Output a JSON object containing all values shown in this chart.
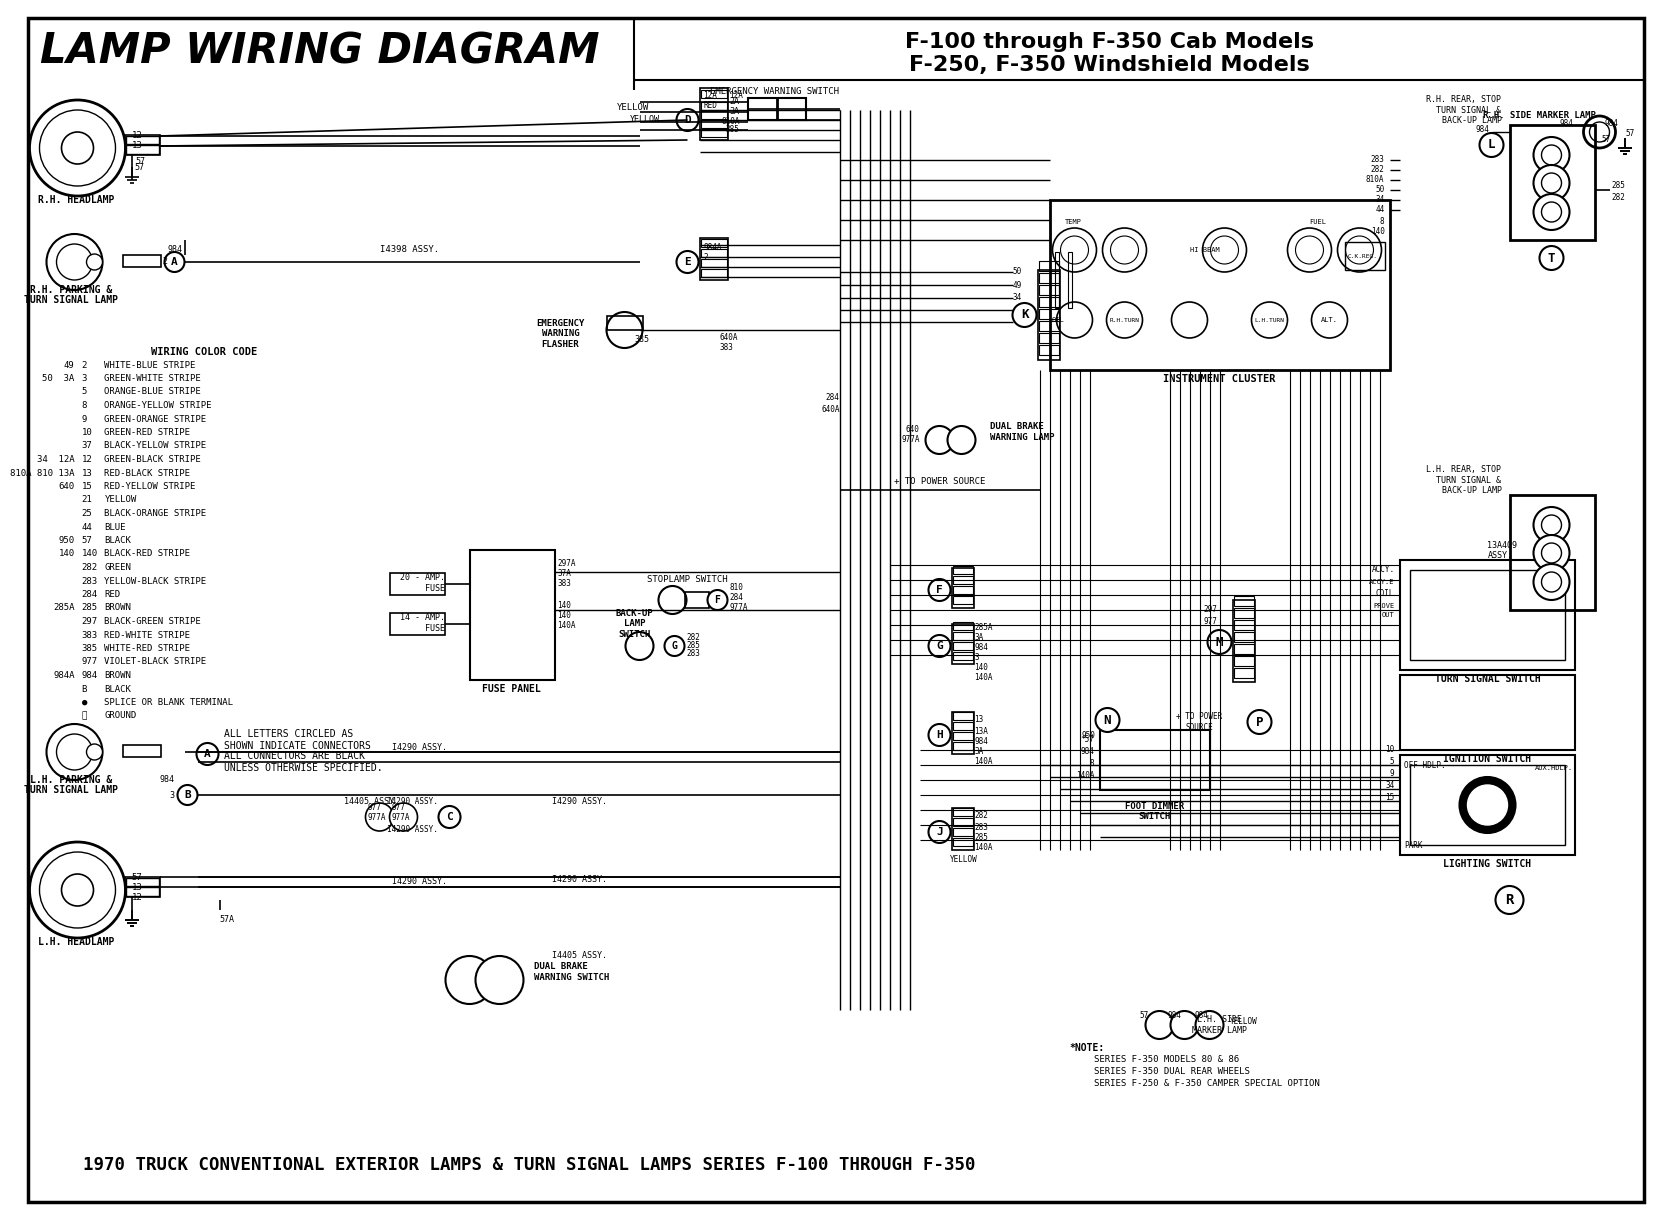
{
  "figsize": [
    16.32,
    12.0
  ],
  "dpi": 100,
  "bg_color": "#ffffff",
  "title": "LAMP WIRING DIAGRAM",
  "subtitle1": "F-100 through F-350 Cab Models",
  "subtitle2": "F-250, F-350 Windshield Models",
  "bottom_title": "1970 TRUCK CONVENTIONAL EXTERIOR LAMPS & TURN SIGNAL LAMPS SERIES F-100 THROUGH F-350",
  "note_lines": [
    "*NOTE:  SERIES F-350 MODELS 80 & 86",
    "           SERIES F-350 DUAL REAR WHEELS",
    "           SERIES F-250 & F-350 CAMPER SPECIAL OPTION"
  ],
  "wiring_color_code": [
    [
      "49",
      "2",
      "WHITE-BLUE STRIPE"
    ],
    [
      "50  3A",
      "3",
      "GREEN-WHITE STRIPE"
    ],
    [
      "",
      "5",
      "ORANGE-BLUE STRIPE"
    ],
    [
      "",
      "8",
      "ORANGE-YELLOW STRIPE"
    ],
    [
      "",
      "9",
      "GREEN-ORANGE STRIPE"
    ],
    [
      "",
      "10",
      "GREEN-RED STRIPE"
    ],
    [
      "",
      "37",
      "BLACK-YELLOW STRIPE"
    ],
    [
      "34  12A",
      "12",
      "GREEN-BLACK STRIPE"
    ],
    [
      "810A 810 13A",
      "13",
      "RED-BLACK STRIPE"
    ],
    [
      "640",
      "15",
      "RED-YELLOW STRIPE"
    ],
    [
      "",
      "21",
      "YELLOW"
    ],
    [
      "",
      "25",
      "BLACK-ORANGE STRIPE"
    ],
    [
      "",
      "44",
      "BLUE"
    ],
    [
      "950",
      "57",
      "BLACK"
    ],
    [
      "140",
      "140",
      "BLACK-RED STRIPE"
    ],
    [
      "",
      "282",
      "GREEN"
    ],
    [
      "",
      "283",
      "YELLOW-BLACK STRIPE"
    ],
    [
      "",
      "284",
      "RED"
    ],
    [
      "285A",
      "285",
      "BROWN"
    ],
    [
      "",
      "297",
      "BLACK-GREEN STRIPE"
    ],
    [
      "",
      "383",
      "RED-WHITE STRIPE"
    ],
    [
      "",
      "385",
      "WHITE-RED STRIPE"
    ],
    [
      "",
      "977",
      "VIOLET-BLACK STRIPE"
    ],
    [
      "984A",
      "984",
      "BROWN"
    ],
    [
      "",
      "B",
      "BLACK"
    ],
    [
      "",
      "●",
      "SPLICE OR BLANK TERMINAL"
    ],
    [
      "",
      "⏚",
      "GROUND"
    ]
  ]
}
